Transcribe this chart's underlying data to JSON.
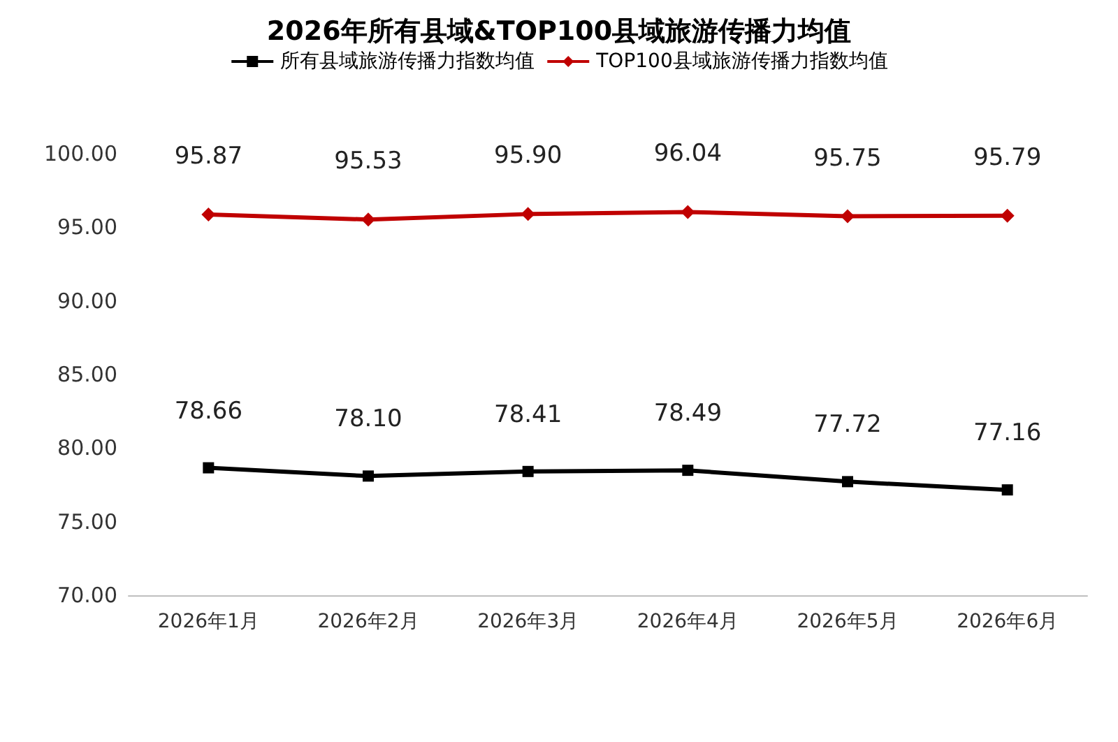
{
  "chart_data": {
    "type": "line",
    "title": "2026年所有县域&TOP100县域旅游传播力均值",
    "categories": [
      "2026年1月",
      "2026年2月",
      "2026年3月",
      "2026年4月",
      "2026年5月",
      "2026年6月"
    ],
    "series": [
      {
        "name": "所有县域旅游传播力指数均值",
        "color": "#000000",
        "marker": "square",
        "values": [
          78.66,
          78.1,
          78.41,
          78.49,
          77.72,
          77.16
        ],
        "value_labels": [
          "78.66",
          "78.10",
          "78.41",
          "78.49",
          "77.72",
          "77.16"
        ]
      },
      {
        "name": "TOP100县域旅游传播力指数均值",
        "color": "#c00000",
        "marker": "diamond",
        "values": [
          95.87,
          95.53,
          95.9,
          96.04,
          95.75,
          95.79
        ],
        "value_labels": [
          "95.87",
          "95.53",
          "95.90",
          "96.04",
          "95.75",
          "95.79"
        ]
      }
    ],
    "ylim": [
      70,
      100
    ],
    "yticks": [
      {
        "value": 70,
        "label": "70.00"
      },
      {
        "value": 75,
        "label": "75.00"
      },
      {
        "value": 80,
        "label": "80.00"
      },
      {
        "value": 85,
        "label": "85.00"
      },
      {
        "value": 90,
        "label": "90.00"
      },
      {
        "value": 95,
        "label": "95.00"
      },
      {
        "value": 100,
        "label": "100.00"
      }
    ],
    "grid": false,
    "legend": "top",
    "line_style": "solid"
  }
}
